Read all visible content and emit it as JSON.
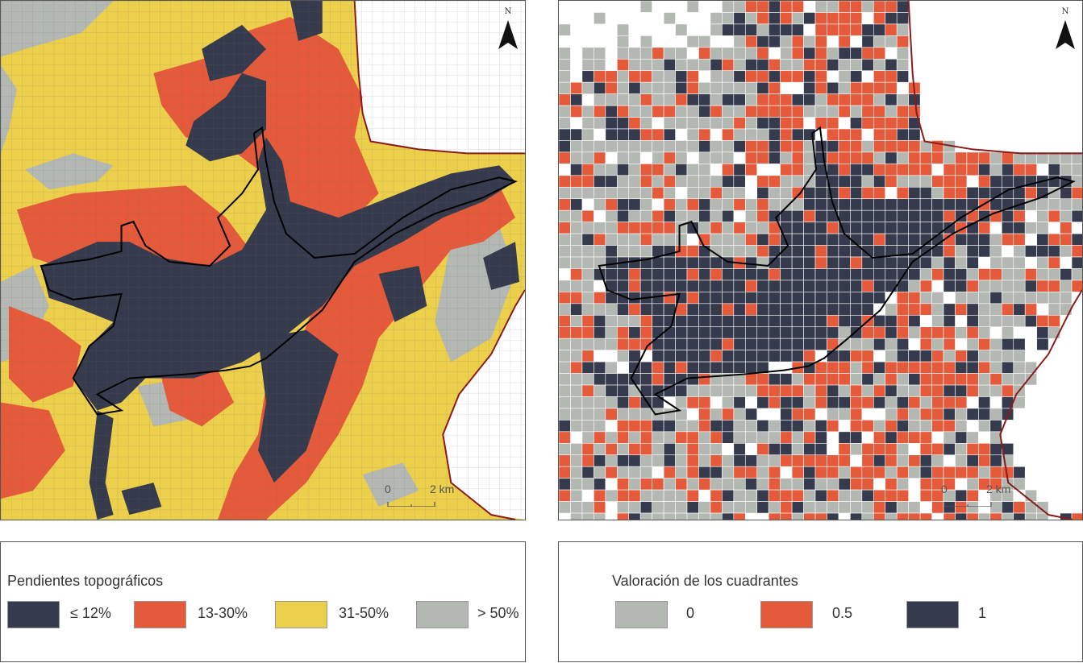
{
  "maps": {
    "left": {
      "north_label": "N",
      "scale_start": "0",
      "scale_end": "2 km"
    },
    "right": {
      "north_label": "N",
      "scale_start": "0",
      "scale_end": "2 km"
    }
  },
  "legend_left": {
    "title": "Pendientes topográficos",
    "items": [
      {
        "label": "≤ 12%",
        "color": "#363a4d"
      },
      {
        "label": "13-30%",
        "color": "#e55a3a"
      },
      {
        "label": "31-50%",
        "color": "#eccf4b"
      },
      {
        "label": "> 50%",
        "color": "#b3b8b2"
      }
    ]
  },
  "legend_right": {
    "title": "Valoración de los cuadrantes",
    "items": [
      {
        "label": "0",
        "color": "#b3b8b2"
      },
      {
        "label": "0.5",
        "color": "#e55a3a"
      },
      {
        "label": "1",
        "color": "#363a4d"
      }
    ]
  },
  "colors": {
    "boundary_red": "#8b1a1a",
    "outline": "#000000"
  }
}
